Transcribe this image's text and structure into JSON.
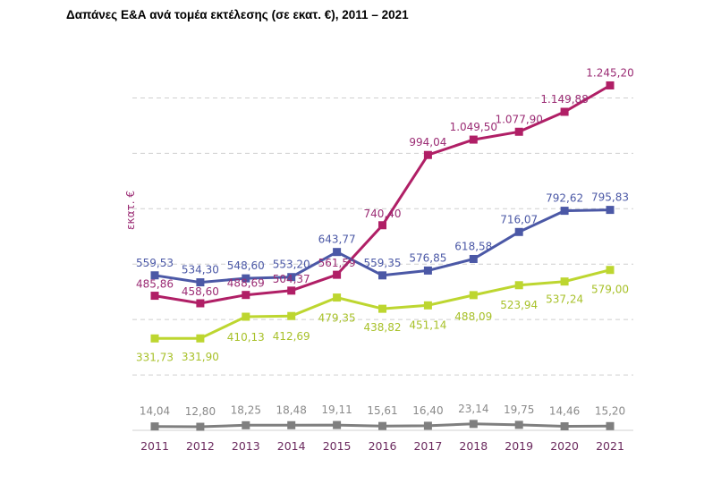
{
  "chart_data": {
    "type": "line",
    "title": "Δαπάνες Ε&Α ανά τομέα εκτέλεσης (σε εκατ. €), 2011 – 2021",
    "xlabel": "",
    "ylabel": "εκατ. €",
    "ylim": [
      0,
      1300
    ],
    "grid": true,
    "categories": [
      "2011",
      "2012",
      "2013",
      "2014",
      "2015",
      "2016",
      "2017",
      "2018",
      "2019",
      "2020",
      "2021"
    ],
    "series": [
      {
        "color": "#b01f66",
        "values": [
          485.86,
          458.6,
          488.69,
          504.37,
          561.59,
          740.4,
          994.04,
          1049.5,
          1077.9,
          1149.88,
          1245.2
        ],
        "labels": [
          "485,86",
          "458,60",
          "488,69",
          "504,37",
          "561,59",
          "740,40",
          "994,04",
          "1.049,50",
          "1.077,90",
          "1.149,88",
          "1.245,20"
        ]
      },
      {
        "color": "#4b58a6",
        "values": [
          559.53,
          534.3,
          548.6,
          553.2,
          643.77,
          559.35,
          576.85,
          618.58,
          716.07,
          792.62,
          795.83
        ],
        "labels": [
          "559,53",
          "534,30",
          "548,60",
          "553,20",
          "643,77",
          "559,35",
          "576,85",
          "618,58",
          "716,07",
          "792,62",
          "795,83"
        ]
      },
      {
        "color": "#bdd630",
        "values": [
          331.73,
          331.9,
          410.13,
          412.69,
          479.35,
          438.82,
          451.14,
          488.09,
          523.94,
          537.24,
          579.0
        ],
        "labels": [
          "331,73",
          "331,90",
          "410,13",
          "412,69",
          "479,35",
          "438,82",
          "451,14",
          "488,09",
          "523,94",
          "537,24",
          "579,00"
        ]
      },
      {
        "color": "#7f7f7f",
        "values": [
          14.04,
          12.8,
          18.25,
          18.48,
          19.11,
          15.61,
          16.4,
          23.14,
          19.75,
          14.46,
          15.2
        ],
        "labels": [
          "14,04",
          "12,80",
          "18,25",
          "18,48",
          "19,11",
          "15,61",
          "16,40",
          "23,14",
          "19,75",
          "14,46",
          "15,20"
        ]
      }
    ]
  }
}
